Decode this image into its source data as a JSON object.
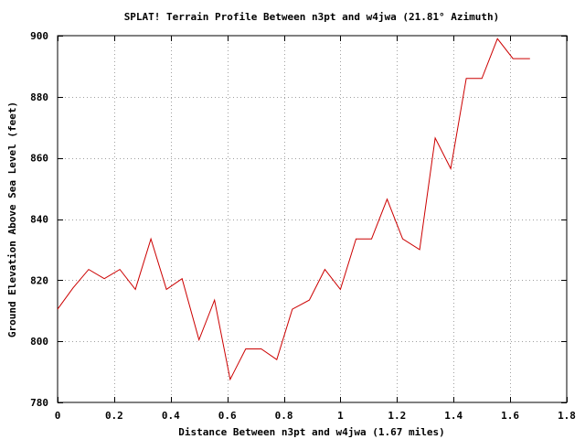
{
  "chart_data": {
    "type": "line",
    "title": "SPLAT! Terrain Profile Between n3pt and w4jwa (21.81° Azimuth)",
    "xlabel": "Distance Between n3pt and w4jwa (1.67 miles)",
    "ylabel": "Ground Elevation Above Sea Level (feet)",
    "xlim": [
      0,
      1.8
    ],
    "ylim": [
      780,
      900
    ],
    "xticks": [
      0,
      0.2,
      0.4,
      0.6,
      0.8,
      1,
      1.2,
      1.4,
      1.6,
      1.8
    ],
    "xtick_labels": [
      "0",
      "0.2",
      "0.4",
      "0.6",
      "0.8",
      "1",
      "1.2",
      "1.4",
      "1.6",
      "1.8"
    ],
    "yticks": [
      780,
      800,
      820,
      840,
      860,
      880,
      900
    ],
    "ytick_labels": [
      "780",
      "800",
      "820",
      "840",
      "860",
      "880",
      "900"
    ],
    "grid": true,
    "line_color": "#cc0000",
    "series": [
      {
        "x": [
          0,
          0.055,
          0.11,
          0.165,
          0.22,
          0.275,
          0.33,
          0.385,
          0.44,
          0.5,
          0.555,
          0.61,
          0.665,
          0.72,
          0.775,
          0.83,
          0.89,
          0.945,
          1.0,
          1.055,
          1.11,
          1.165,
          1.22,
          1.28,
          1.335,
          1.39,
          1.445,
          1.5,
          1.555,
          1.61,
          1.67
        ],
        "y": [
          810.5,
          817.5,
          823.5,
          820.5,
          823.5,
          817,
          833.5,
          817,
          820.5,
          800.5,
          813.5,
          787.5,
          797.5,
          797.5,
          794,
          810.5,
          813.5,
          823.5,
          817,
          833.5,
          833.5,
          846.5,
          833.5,
          830,
          866.5,
          856.5,
          886,
          886,
          899,
          892.5,
          892.5
        ]
      }
    ]
  }
}
